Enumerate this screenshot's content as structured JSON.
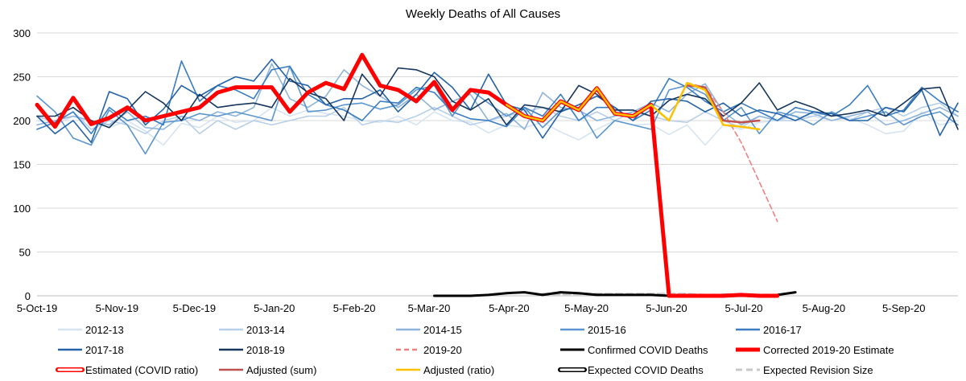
{
  "chart_data": {
    "type": "line",
    "title": "Weekly Deaths of All Causes",
    "xlabel": "",
    "ylabel": "",
    "ylim": [
      0,
      300
    ],
    "y_ticks": [
      0,
      50,
      100,
      150,
      200,
      250,
      300
    ],
    "x_range": [
      0,
      51
    ],
    "x_ticks": [
      {
        "x": 0,
        "label": "5-Oct-19"
      },
      {
        "x": 4.43,
        "label": "5-Nov-19"
      },
      {
        "x": 8.71,
        "label": "5-Dec-19"
      },
      {
        "x": 13.14,
        "label": "5-Jan-20"
      },
      {
        "x": 17.57,
        "label": "5-Feb-20"
      },
      {
        "x": 21.71,
        "label": "5-Mar-20"
      },
      {
        "x": 26.14,
        "label": "5-Apr-20"
      },
      {
        "x": 30.43,
        "label": "5-May-20"
      },
      {
        "x": 34.86,
        "label": "5-Jun-20"
      },
      {
        "x": 39.14,
        "label": "5-Jul-20"
      },
      {
        "x": 43.57,
        "label": "5-Aug-20"
      },
      {
        "x": 48.0,
        "label": "5-Sep-20"
      }
    ],
    "grid": true,
    "legend_position": "bottom",
    "series": [
      {
        "name": "2012-13",
        "color": "#d6e4f2",
        "style": "solid",
        "x": [
          0,
          1,
          2,
          3,
          4,
          5,
          6,
          7,
          8,
          9,
          10,
          11,
          12,
          13,
          14,
          15,
          16,
          17,
          18,
          19,
          20,
          21,
          22,
          23,
          24,
          25,
          26,
          27,
          28,
          29,
          30,
          31,
          32,
          33,
          34,
          35,
          36,
          37,
          38,
          39,
          40,
          41,
          42,
          43,
          44,
          45,
          46,
          47,
          48,
          49,
          50,
          51
        ],
        "values": [
          200,
          195,
          205,
          198,
          192,
          200,
          188,
          172,
          197,
          192,
          205,
          198,
          200,
          215,
          205,
          212,
          208,
          205,
          200,
          198,
          205,
          195,
          210,
          200,
          198,
          186,
          195,
          192,
          198,
          187,
          178,
          190,
          200,
          195,
          196,
          184,
          195,
          172,
          195,
          190,
          198,
          200,
          205,
          205,
          200,
          203,
          195,
          185,
          188,
          210,
          195,
          200
        ]
      },
      {
        "name": "2013-14",
        "color": "#b8cfe8",
        "style": "solid",
        "x": [
          0,
          1,
          2,
          3,
          4,
          5,
          6,
          7,
          8,
          9,
          10,
          11,
          12,
          13,
          14,
          15,
          16,
          17,
          18,
          19,
          20,
          21,
          22,
          23,
          24,
          25,
          26,
          27,
          28,
          29,
          30,
          31,
          32,
          33,
          34,
          35,
          36,
          37,
          38,
          39,
          40,
          41,
          42,
          43,
          44,
          45,
          46,
          47,
          48,
          49,
          50,
          51
        ],
        "values": [
          205,
          198,
          210,
          190,
          200,
          195,
          185,
          200,
          205,
          185,
          200,
          190,
          200,
          195,
          200,
          205,
          205,
          215,
          195,
          200,
          198,
          205,
          215,
          205,
          195,
          200,
          205,
          210,
          215,
          205,
          200,
          210,
          200,
          210,
          205,
          200,
          198,
          210,
          200,
          192,
          205,
          200,
          200,
          205,
          210,
          200,
          210,
          215,
          205,
          215,
          220,
          205
        ]
      },
      {
        "name": "2014-15",
        "color": "#8fb4dc",
        "style": "solid",
        "x": [
          0,
          1,
          2,
          3,
          4,
          5,
          6,
          7,
          8,
          9,
          10,
          11,
          12,
          13,
          14,
          15,
          16,
          17,
          18,
          19,
          20,
          21,
          22,
          23,
          24,
          25,
          26,
          27,
          28,
          29,
          30,
          31,
          32,
          33,
          34,
          35,
          36,
          37,
          38,
          39,
          40,
          41,
          42,
          43,
          44,
          45,
          46,
          47,
          48,
          49,
          50,
          51
        ],
        "values": [
          195,
          200,
          205,
          200,
          195,
          210,
          192,
          190,
          205,
          200,
          210,
          205,
          215,
          265,
          225,
          215,
          228,
          258,
          240,
          228,
          215,
          230,
          212,
          222,
          230,
          200,
          208,
          190,
          232,
          215,
          212,
          200,
          205,
          210,
          220,
          210,
          230,
          242,
          210,
          195,
          205,
          200,
          210,
          208,
          200,
          205,
          210,
          195,
          200,
          208,
          215,
          205
        ]
      },
      {
        "name": "2015-16",
        "color": "#5b95cf",
        "style": "solid",
        "x": [
          0,
          1,
          2,
          3,
          4,
          5,
          6,
          7,
          8,
          9,
          10,
          11,
          12,
          13,
          14,
          15,
          16,
          17,
          18,
          19,
          20,
          21,
          22,
          23,
          24,
          25,
          26,
          27,
          28,
          29,
          30,
          31,
          32,
          33,
          34,
          35,
          36,
          37,
          38,
          39,
          40,
          41,
          42,
          43,
          44,
          45,
          46,
          47,
          48,
          49,
          50,
          51
        ],
        "values": [
          228,
          210,
          180,
          172,
          212,
          195,
          162,
          198,
          200,
          208,
          205,
          210,
          205,
          200,
          262,
          210,
          212,
          218,
          220,
          213,
          218,
          235,
          240,
          205,
          235,
          220,
          205,
          215,
          192,
          212,
          215,
          180,
          200,
          195,
          190,
          235,
          240,
          230,
          200,
          215,
          185,
          210,
          205,
          195,
          210,
          200,
          205,
          210,
          195,
          205,
          210,
          195
        ]
      },
      {
        "name": "2016-17",
        "color": "#3a7dc0",
        "style": "solid",
        "x": [
          0,
          1,
          2,
          3,
          4,
          5,
          6,
          7,
          8,
          9,
          10,
          11,
          12,
          13,
          14,
          15,
          16,
          17,
          18,
          19,
          20,
          21,
          22,
          23,
          24,
          25,
          26,
          27,
          28,
          29,
          30,
          31,
          32,
          33,
          34,
          35,
          36,
          37,
          38,
          39,
          40,
          41,
          42,
          43,
          44,
          45,
          46,
          47,
          48,
          49,
          50,
          51
        ],
        "values": [
          190,
          198,
          210,
          185,
          215,
          200,
          205,
          195,
          268,
          222,
          240,
          235,
          225,
          258,
          262,
          230,
          218,
          212,
          200,
          222,
          220,
          238,
          232,
          210,
          202,
          200,
          193,
          215,
          205,
          230,
          200,
          215,
          215,
          200,
          212,
          248,
          238,
          222,
          210,
          220,
          210,
          200,
          215,
          210,
          205,
          218,
          240,
          205,
          212,
          238,
          222,
          210
        ]
      },
      {
        "name": "2017-18",
        "color": "#2563a8",
        "style": "solid",
        "x": [
          0,
          1,
          2,
          3,
          4,
          5,
          6,
          7,
          8,
          9,
          10,
          11,
          12,
          13,
          14,
          15,
          16,
          17,
          18,
          19,
          20,
          21,
          22,
          23,
          24,
          25,
          26,
          27,
          28,
          29,
          30,
          31,
          32,
          33,
          34,
          35,
          36,
          37,
          38,
          39,
          40,
          41,
          42,
          43,
          44,
          45,
          46,
          47,
          48,
          49,
          50,
          51
        ],
        "values": [
          205,
          185,
          200,
          175,
          233,
          225,
          195,
          213,
          240,
          228,
          240,
          250,
          245,
          270,
          245,
          240,
          218,
          225,
          225,
          235,
          210,
          230,
          255,
          238,
          212,
          253,
          218,
          212,
          180,
          210,
          218,
          228,
          215,
          200,
          222,
          225,
          222,
          210,
          220,
          205,
          212,
          208,
          200,
          210,
          208,
          200,
          200,
          215,
          210,
          235,
          183,
          220
        ]
      },
      {
        "name": "2018-19",
        "color": "#16365c",
        "style": "solid",
        "x": [
          0,
          1,
          2,
          3,
          4,
          5,
          6,
          7,
          8,
          9,
          10,
          11,
          12,
          13,
          14,
          15,
          16,
          17,
          18,
          19,
          20,
          21,
          22,
          23,
          24,
          25,
          26,
          27,
          28,
          29,
          30,
          31,
          32,
          33,
          34,
          35,
          36,
          37,
          38,
          39,
          40,
          41,
          42,
          43,
          44,
          45,
          46,
          47,
          48,
          49,
          50,
          51
        ],
        "values": [
          205,
          205,
          215,
          200,
          192,
          212,
          233,
          220,
          200,
          230,
          215,
          218,
          220,
          215,
          248,
          232,
          225,
          200,
          253,
          228,
          260,
          258,
          250,
          222,
          212,
          225,
          195,
          218,
          215,
          210,
          240,
          230,
          212,
          212,
          205,
          223,
          230,
          225,
          205,
          220,
          243,
          212,
          222,
          215,
          205,
          208,
          212,
          205,
          220,
          236,
          238,
          190
        ]
      },
      {
        "name": "2019-20",
        "color": "#f08080",
        "style": "dashed",
        "x": [
          36,
          37,
          38,
          39,
          40,
          41
        ],
        "values": [
          243,
          238,
          210,
          175,
          130,
          85
        ]
      },
      {
        "name": "Confirmed COVID Deaths",
        "color": "#000000",
        "style": "solid",
        "x": [
          22,
          23,
          24,
          25,
          26,
          27,
          28,
          29,
          30,
          31,
          32,
          33,
          34,
          35,
          36,
          37,
          38,
          39,
          40,
          41,
          42
        ],
        "values": [
          0,
          0,
          0,
          1,
          3,
          4,
          1,
          4,
          3,
          1,
          1,
          1,
          1,
          0,
          0,
          0,
          1,
          1,
          0,
          1,
          4
        ]
      },
      {
        "name": "Corrected 2019-20 Estimate",
        "color": "#ff0000",
        "style": "solid",
        "x": [
          0,
          1,
          2,
          3,
          4,
          5,
          6,
          7,
          8,
          9,
          10,
          11,
          12,
          13,
          14,
          15,
          16,
          17,
          18,
          19,
          20,
          21,
          22,
          23,
          24,
          25,
          26,
          27,
          28,
          29,
          30,
          31,
          32,
          33,
          34,
          35,
          36,
          37,
          38,
          39,
          40,
          41
        ],
        "values": [
          218,
          193,
          226,
          196,
          203,
          215,
          200,
          205,
          210,
          215,
          232,
          238,
          238,
          238,
          210,
          232,
          243,
          236,
          275,
          240,
          235,
          222,
          244,
          212,
          235,
          232,
          218,
          205,
          200,
          222,
          212,
          237,
          208,
          205,
          218,
          0,
          0,
          0,
          0,
          1,
          0,
          0
        ]
      },
      {
        "name": "Estimated (COVID ratio)",
        "color": "#ffffff",
        "style": "outlined-red",
        "x": [],
        "values": []
      },
      {
        "name": "Adjusted (sum)",
        "color": "#c0504d",
        "style": "solid",
        "x": [
          36,
          37,
          38,
          39,
          40
        ],
        "values": [
          240,
          238,
          200,
          198,
          200
        ]
      },
      {
        "name": "Adjusted (ratio)",
        "color": "#ffc000",
        "style": "solid",
        "x": [
          26,
          27,
          28,
          29,
          30,
          31,
          32,
          33,
          34,
          35,
          36,
          37,
          38,
          39,
          40
        ],
        "values": [
          218,
          205,
          200,
          222,
          212,
          237,
          208,
          205,
          218,
          200,
          243,
          235,
          195,
          193,
          190
        ]
      },
      {
        "name": "Expected COVID Deaths",
        "color": "#ffffff",
        "style": "outlined-black",
        "x": [],
        "values": []
      },
      {
        "name": "Expected Revision Size",
        "color": "#c8c8c8",
        "style": "dashed-thick",
        "x": [
          28,
          29,
          30,
          31,
          32,
          33,
          34,
          35,
          36,
          37,
          38,
          39,
          40,
          41
        ],
        "values": [
          2,
          2,
          2,
          2,
          2,
          2,
          2,
          2,
          2,
          1,
          1,
          1,
          1,
          1
        ]
      }
    ]
  }
}
